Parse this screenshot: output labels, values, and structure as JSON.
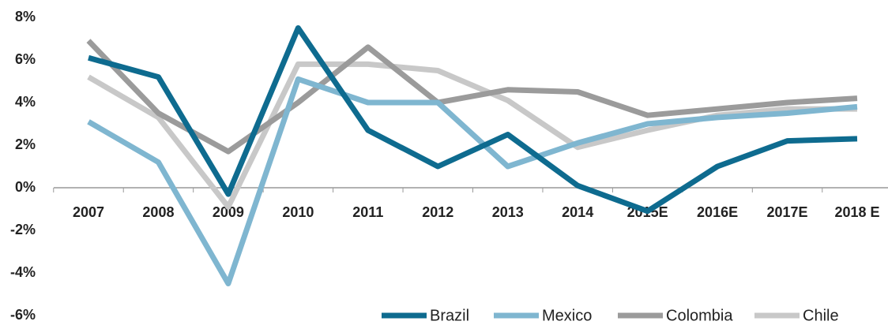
{
  "chart_data": {
    "type": "line",
    "categories": [
      "2007",
      "2008",
      "2009",
      "2010",
      "2011",
      "2012",
      "2013",
      "2014",
      "2015E",
      "2016E",
      "2017E",
      "2018 E"
    ],
    "series": [
      {
        "name": "Brazil",
        "color": "#0e6b8f",
        "values": [
          6.1,
          5.2,
          -0.3,
          7.5,
          2.7,
          1.0,
          2.5,
          0.1,
          -1.1,
          1.0,
          2.2,
          2.3
        ]
      },
      {
        "name": "Mexico",
        "color": "#7fb6d0",
        "values": [
          3.1,
          1.2,
          -4.5,
          5.1,
          4.0,
          4.0,
          1.0,
          2.1,
          3.0,
          3.3,
          3.5,
          3.8
        ]
      },
      {
        "name": "Colombia",
        "color": "#9b9b9b",
        "values": [
          6.9,
          3.5,
          1.7,
          4.0,
          6.6,
          4.0,
          4.6,
          4.5,
          3.4,
          3.7,
          4.0,
          4.2
        ]
      },
      {
        "name": "Chile",
        "color": "#c8c8c8",
        "values": [
          5.2,
          3.3,
          -0.9,
          5.8,
          5.8,
          5.5,
          4.1,
          1.9,
          2.7,
          3.4,
          3.7,
          3.7
        ]
      }
    ],
    "ylim": [
      -6,
      8
    ],
    "yticks": [
      {
        "value": -6,
        "label": "-6%"
      },
      {
        "value": -4,
        "label": "-4%"
      },
      {
        "value": -2,
        "label": "-2%"
      },
      {
        "value": 0,
        "label": "0%"
      },
      {
        "value": 2,
        "label": "2%"
      },
      {
        "value": 4,
        "label": "4%"
      },
      {
        "value": 6,
        "label": "6%"
      },
      {
        "value": 8,
        "label": "8%"
      }
    ],
    "grid": false,
    "legend": "bottom-right"
  }
}
